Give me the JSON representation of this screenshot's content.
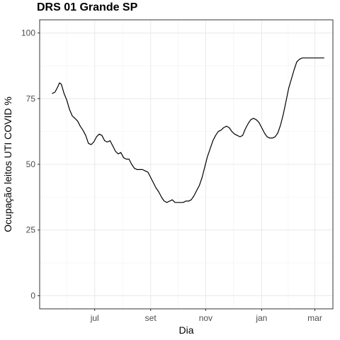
{
  "chart_data": {
    "type": "line",
    "title": "DRS 01 Grande SP",
    "xlabel": "Dia",
    "ylabel": "Ocupação leitos UTI COVID %",
    "ylim": [
      -5,
      105
    ],
    "y_ticks": [
      0,
      25,
      50,
      75,
      100
    ],
    "x_unit": "days from 2020-05-15",
    "xlim": [
      -14,
      311
    ],
    "x_ticks": [
      {
        "label": "jul",
        "x": 47
      },
      {
        "label": "set",
        "x": 109
      },
      {
        "label": "nov",
        "x": 170
      },
      {
        "label": "jan",
        "x": 232
      },
      {
        "label": "mar",
        "x": 291
      }
    ],
    "grid": true,
    "series": [
      {
        "name": "",
        "color": "#000000",
        "x": [
          0,
          3,
          6,
          8,
          10,
          13,
          16,
          19,
          22,
          25,
          28,
          31,
          34,
          37,
          40,
          43,
          46,
          49,
          52,
          55,
          58,
          61,
          64,
          67,
          70,
          73,
          76,
          79,
          82,
          85,
          88,
          91,
          94,
          97,
          100,
          103,
          106,
          109,
          112,
          115,
          118,
          121,
          124,
          127,
          130,
          133,
          136,
          139,
          142,
          145,
          148,
          151,
          154,
          157,
          160,
          163,
          166,
          169,
          172,
          175,
          178,
          181,
          184,
          187,
          190,
          193,
          196,
          199,
          202,
          205,
          208,
          211,
          214,
          217,
          220,
          223,
          226,
          229,
          232,
          235,
          238,
          241,
          244,
          247,
          250,
          253,
          256,
          259,
          262,
          265,
          268,
          271,
          274,
          277,
          280,
          283,
          286,
          289,
          292,
          295,
          298,
          301
        ],
        "values": [
          77,
          77.5,
          79.5,
          81,
          80.5,
          77,
          74.5,
          71,
          68.5,
          67.5,
          66.5,
          64.5,
          63,
          61,
          58,
          57.5,
          58.5,
          60.5,
          61.5,
          61,
          59,
          58.5,
          59,
          57,
          55,
          54,
          54.5,
          52.5,
          52,
          52,
          50,
          48.5,
          48,
          48,
          48,
          47.5,
          47,
          45,
          43,
          41,
          39.5,
          37.5,
          36,
          35.5,
          36,
          36.5,
          35.5,
          35.5,
          35.5,
          35.5,
          36,
          36,
          36.5,
          38,
          40,
          42,
          45,
          49,
          53,
          56,
          59,
          61,
          62.5,
          63,
          64,
          64.5,
          64,
          62.5,
          61.5,
          61,
          60.5,
          61,
          63.5,
          65.5,
          67,
          67.5,
          67,
          66,
          64,
          62,
          60.5,
          60,
          60,
          60.5,
          62,
          65,
          69,
          74,
          79,
          82.5,
          86,
          89,
          90,
          90.5,
          90.5,
          90.5,
          90.5,
          90.5,
          90.5,
          90.5,
          90.5,
          90.5
        ]
      }
    ]
  }
}
